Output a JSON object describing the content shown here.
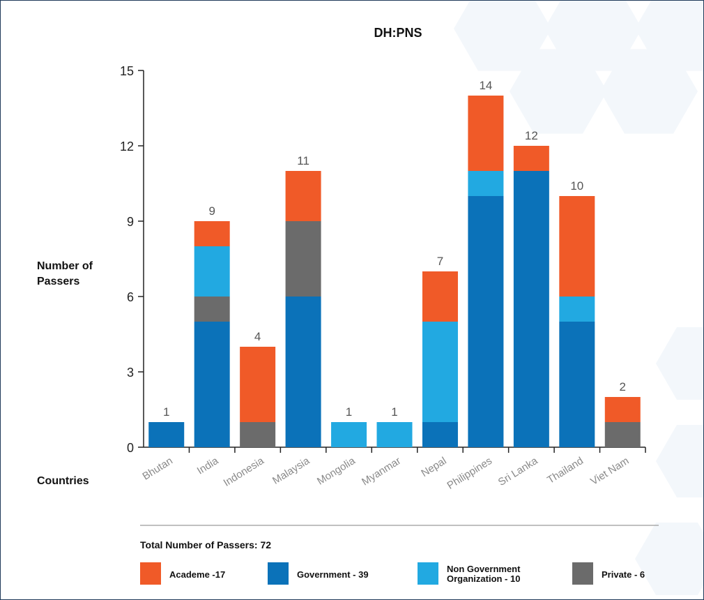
{
  "chart_data": {
    "type": "bar",
    "stacked": true,
    "title": "DH:PNS",
    "ylabel": "Number of Passers",
    "xlabel": "Countries",
    "ylim": [
      0,
      15
    ],
    "yticks": [
      "0",
      "3",
      "6",
      "9",
      "12",
      "15"
    ],
    "grid": false,
    "categories": [
      "Bhutan",
      "India",
      "Indonesia",
      "Malaysia",
      "Mongolia",
      "Myanmar",
      "Nepal",
      "Philippines",
      "Sri Lanka",
      "Thailand",
      "Viet Nam"
    ],
    "series": [
      {
        "name": "Government - 39",
        "key": "government",
        "color": "#0b72b9",
        "values": [
          1,
          5,
          0,
          6,
          0,
          0,
          1,
          10,
          11,
          5,
          0
        ]
      },
      {
        "name": "Private - 6",
        "key": "private",
        "color": "#6b6b6b",
        "values": [
          0,
          1,
          1,
          3,
          0,
          0,
          0,
          0,
          0,
          0,
          1
        ]
      },
      {
        "name": "Non Government Organization - 10",
        "key": "ngo",
        "color": "#22a9e1",
        "values": [
          0,
          2,
          0,
          0,
          1,
          1,
          4,
          1,
          0,
          1,
          0
        ]
      },
      {
        "name": "Academe -17",
        "key": "academe",
        "color": "#f05a28",
        "values": [
          0,
          1,
          3,
          2,
          0,
          0,
          2,
          3,
          1,
          4,
          1
        ]
      }
    ],
    "totals": [
      1,
      9,
      4,
      11,
      1,
      1,
      7,
      14,
      12,
      10,
      2
    ],
    "total_text": "Total Number of Passers: 72",
    "legend": [
      {
        "label": "Academe -17",
        "color": "#f05a28"
      },
      {
        "label": "Government - 39",
        "color": "#0b72b9"
      },
      {
        "label": "Non Government Organization - 10",
        "color": "#22a9e1"
      },
      {
        "label": "Private - 6",
        "color": "#6b6b6b"
      }
    ],
    "legend_placement": "bottom"
  }
}
